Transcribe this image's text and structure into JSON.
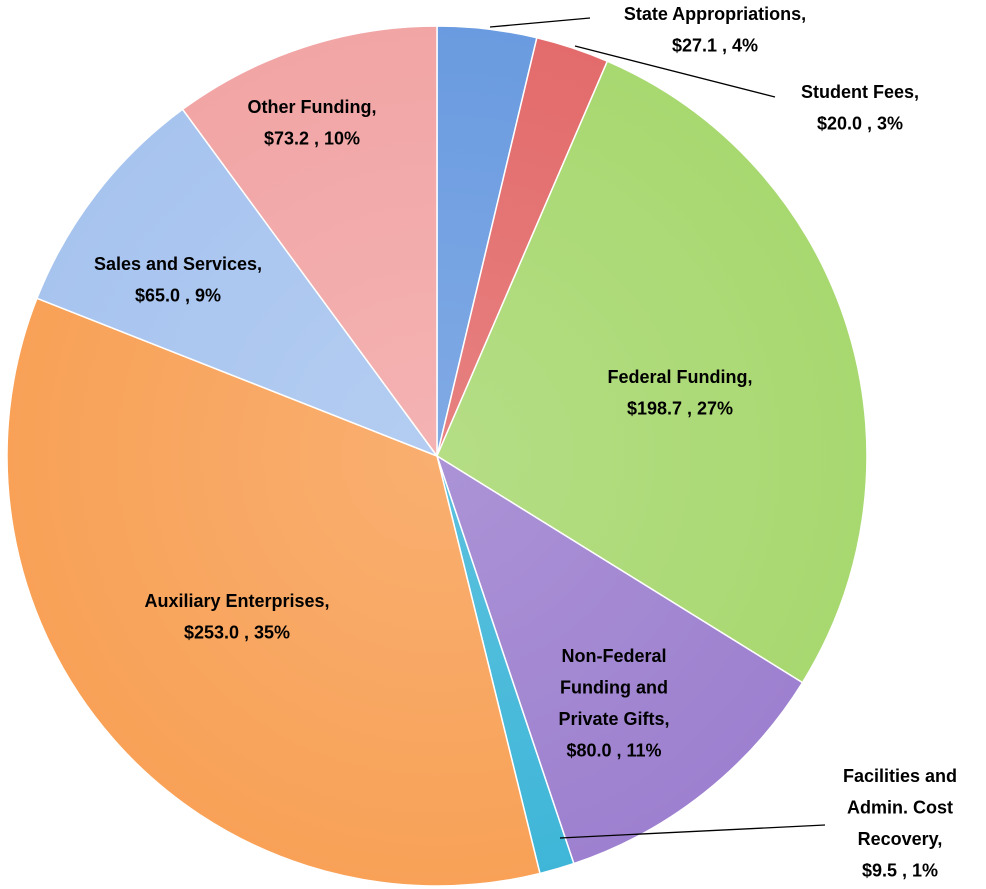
{
  "chart_data": {
    "type": "pie",
    "categories": [
      "State Appropriations",
      "Student Fees",
      "Federal Funding",
      "Non-Federal Funding and Private Gifts",
      "Facilities and Admin. Cost Recovery",
      "Auxiliary Enterprises",
      "Sales and Services",
      "Other Funding"
    ],
    "values": [
      27.1,
      20.0,
      198.7,
      80.0,
      9.5,
      253.0,
      65.0,
      73.2
    ],
    "value_labels": [
      [
        "State Appropriations,",
        "$27.1 , 4%"
      ],
      [
        "Student Fees,",
        "$20.0 , 3%"
      ],
      [
        "Federal Funding,",
        "$198.7 , 27%"
      ],
      [
        "Non-Federal",
        "Funding and",
        "Private Gifts,",
        "$80.0 , 11%"
      ],
      [
        "Facilities and",
        "Admin. Cost",
        "Recovery,",
        "$9.5 , 1%"
      ],
      [
        "Auxiliary Enterprises,",
        "$253.0 , 35%"
      ],
      [
        "Sales and Services,",
        "$65.0 , 9%"
      ],
      [
        "Other Funding,",
        "$73.2 , 10%"
      ]
    ],
    "colors": [
      "#6a9be0",
      "#e36b6b",
      "#a8d870",
      "#9d80cf",
      "#3fb6d8",
      "#f8a157",
      "#a7c4ef",
      "#f2a5a5"
    ]
  }
}
